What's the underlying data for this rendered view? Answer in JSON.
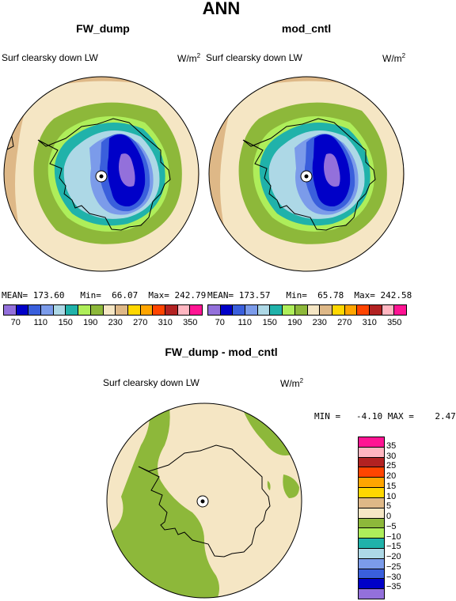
{
  "main_title": "ANN",
  "panels": [
    {
      "title": "FW_dump",
      "left_label": "Surf clearsky down LW",
      "units_base": "W/m",
      "units_exp": "2",
      "stats": "MEAN= 173.60   Min=  66.07  Max= 242.79"
    },
    {
      "title": "mod_cntl",
      "left_label": "Surf clearsky down LW",
      "units_base": "W/m",
      "units_exp": "2",
      "stats": "MEAN= 173.57   Min=  65.78  Max= 242.58"
    }
  ],
  "abs_colorbar": {
    "colors": [
      "#9370DB",
      "#0000C8",
      "#3A5FDC",
      "#7B9BEA",
      "#ADD8E6",
      "#20B2AA",
      "#AEEE5A",
      "#8DB83A",
      "#F5E6C4",
      "#DEB887",
      "#FFD700",
      "#FFA500",
      "#FF4500",
      "#B22222",
      "#FFB6C1",
      "#FF1493"
    ],
    "ticks": [
      "70",
      "110",
      "150",
      "190",
      "230",
      "270",
      "310",
      "350"
    ]
  },
  "diff": {
    "title": "FW_dump - mod_cntl",
    "left_label": "Surf clearsky down LW",
    "units_base": "W/m",
    "units_exp": "2",
    "stats": "MIN =   -4.10 MAX =    2.47",
    "colorbar": {
      "colors_top_to_bottom": [
        "#FF1493",
        "#FFB6C1",
        "#B22222",
        "#FF4500",
        "#FFA500",
        "#FFD700",
        "#DEB887",
        "#F5E6C4",
        "#8DB83A",
        "#AEEE5A",
        "#20B2AA",
        "#ADD8E6",
        "#7B9BEA",
        "#3A5FDC",
        "#0000C8",
        "#9370DB"
      ],
      "ticks_top_to_bottom": [
        "35",
        "30",
        "25",
        "20",
        "15",
        "10",
        "5",
        "0",
        "−5",
        "−10",
        "−15",
        "−20",
        "−25",
        "−30",
        "−35"
      ]
    }
  }
}
